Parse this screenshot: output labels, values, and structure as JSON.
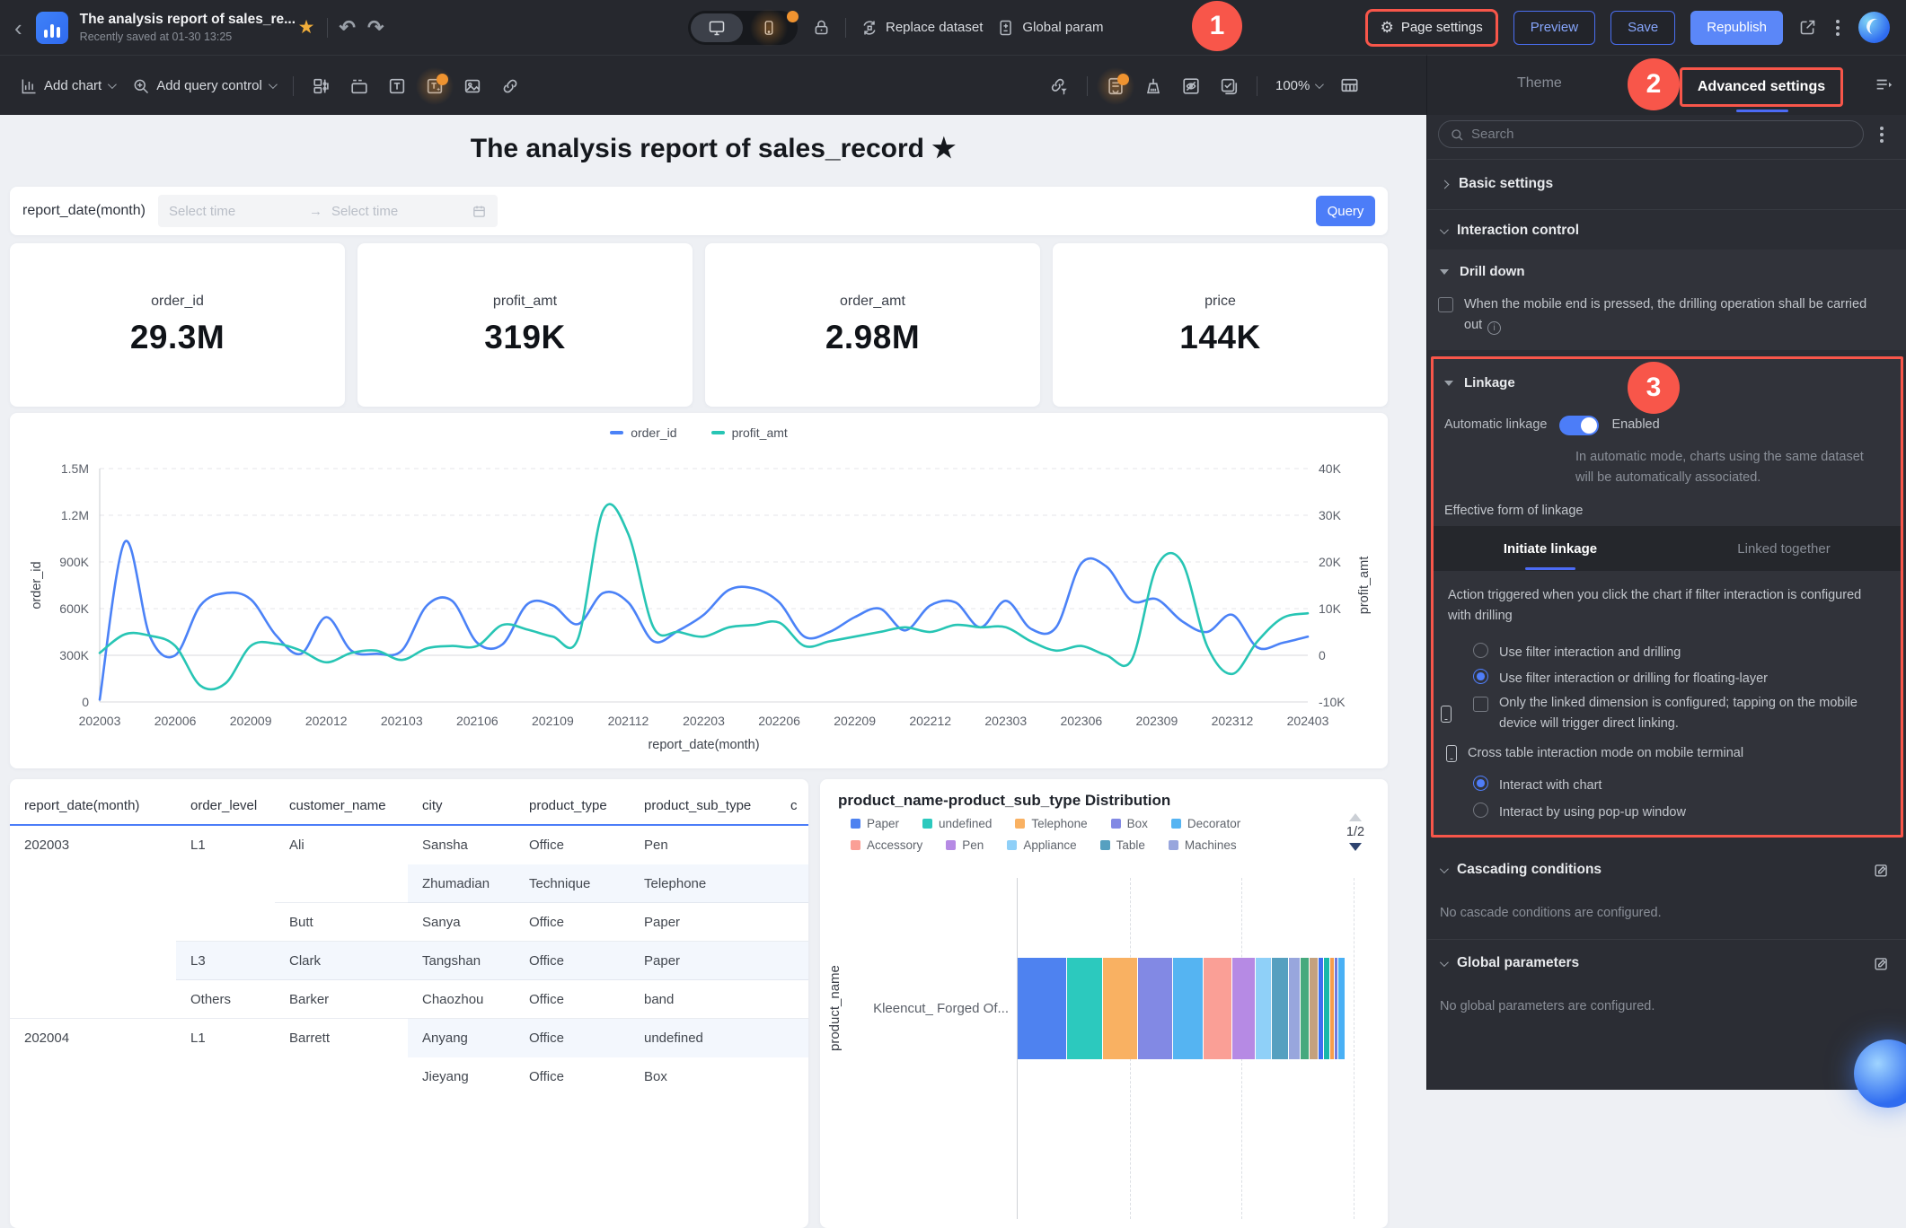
{
  "header": {
    "title": "The analysis report of sales_re...",
    "subtitle": "Recently saved at 01-30 13:25",
    "replace_dataset": "Replace dataset",
    "global_params": "Global param",
    "page_settings": "Page settings",
    "preview": "Preview",
    "save": "Save",
    "republish": "Republish",
    "icons": [
      "back",
      "app-logo",
      "favorite-star",
      "undo",
      "redo",
      "desktop",
      "mobile",
      "lock",
      "replace-dataset",
      "global-parameters",
      "gear",
      "share",
      "more",
      "avatar"
    ]
  },
  "toolbar": {
    "add_chart": "Add chart",
    "add_query_control": "Add query control",
    "zoom_level": "100%",
    "left_icons": [
      "widget-layout",
      "tab-container",
      "text",
      "text-template",
      "image",
      "hyperlink"
    ],
    "right_icons": [
      "link-filter",
      "report-doc",
      "clean-format",
      "hide-element",
      "batch-select",
      "canvas-size"
    ]
  },
  "annotations": {
    "badge1": "1",
    "badge2": "2",
    "badge3": "3"
  },
  "canvas": {
    "title": "The analysis report of sales_record",
    "title_star": "★",
    "query": {
      "label": "report_date(month)",
      "placeholder1": "Select time",
      "placeholder2": "Select time",
      "arrow": "→",
      "button": "Query"
    },
    "kpis": [
      {
        "label": "order_id",
        "value": "29.3M"
      },
      {
        "label": "profit_amt",
        "value": "319K"
      },
      {
        "label": "order_amt",
        "value": "2.98M"
      },
      {
        "label": "price",
        "value": "144K"
      }
    ]
  },
  "chart_data": [
    {
      "type": "line",
      "x_axis_label": "report_date(month)",
      "x_ticks": [
        "202003",
        "202006",
        "202009",
        "202012",
        "202103",
        "202106",
        "202109",
        "202112",
        "202203",
        "202206",
        "202209",
        "202212",
        "202303",
        "202306",
        "202309",
        "202312",
        "202403"
      ],
      "y_left": {
        "label": "order_id",
        "ticks": [
          "0",
          "300K",
          "600K",
          "900K",
          "1.2M",
          "1.5M"
        ],
        "min_k": 0,
        "max_k": 1500
      },
      "y_right": {
        "label": "profit_amt",
        "ticks": [
          "-10K",
          "0",
          "10K",
          "20K",
          "30K",
          "40K"
        ],
        "min_k": -10,
        "max_k": 40
      },
      "grid": true,
      "legend_position": "top",
      "series": [
        {
          "name": "order_id",
          "color": "#4b82f7",
          "axis": "left",
          "unit": "K",
          "points": [
            [
              202003,
              15
            ],
            [
              202004,
              1030
            ],
            [
              202005,
              420
            ],
            [
              202006,
              300
            ],
            [
              202007,
              620
            ],
            [
              202008,
              700
            ],
            [
              202009,
              660
            ],
            [
              202010,
              430
            ],
            [
              202011,
              310
            ],
            [
              202012,
              545
            ],
            [
              202101,
              330
            ],
            [
              202102,
              310
            ],
            [
              202103,
              330
            ],
            [
              202104,
              620
            ],
            [
              202105,
              650
            ],
            [
              202106,
              380
            ],
            [
              202107,
              370
            ],
            [
              202108,
              630
            ],
            [
              202109,
              620
            ],
            [
              202110,
              500
            ],
            [
              202111,
              700
            ],
            [
              202112,
              640
            ],
            [
              202201,
              390
            ],
            [
              202202,
              460
            ],
            [
              202203,
              560
            ],
            [
              202204,
              720
            ],
            [
              202205,
              730
            ],
            [
              202206,
              640
            ],
            [
              202207,
              420
            ],
            [
              202208,
              450
            ],
            [
              202209,
              545
            ],
            [
              202210,
              600
            ],
            [
              202211,
              460
            ],
            [
              202212,
              620
            ],
            [
              202301,
              640
            ],
            [
              202302,
              480
            ],
            [
              202303,
              650
            ],
            [
              202304,
              470
            ],
            [
              202305,
              480
            ],
            [
              202306,
              890
            ],
            [
              202307,
              870
            ],
            [
              202308,
              650
            ],
            [
              202309,
              660
            ],
            [
              202310,
              520
            ],
            [
              202311,
              450
            ],
            [
              202312,
              560
            ],
            [
              202401,
              350
            ],
            [
              202402,
              380
            ],
            [
              202403,
              420
            ]
          ]
        },
        {
          "name": "profit_amt",
          "color": "#27c5b4",
          "axis": "right",
          "unit": "K",
          "points": [
            [
              202003,
              0.5
            ],
            [
              202004,
              4.5
            ],
            [
              202005,
              4.2
            ],
            [
              202006,
              2
            ],
            [
              202007,
              -6.5
            ],
            [
              202008,
              -6
            ],
            [
              202009,
              2
            ],
            [
              202010,
              2.5
            ],
            [
              202011,
              1
            ],
            [
              202012,
              -1.5
            ],
            [
              202101,
              0.5
            ],
            [
              202102,
              1
            ],
            [
              202103,
              -1
            ],
            [
              202104,
              1.5
            ],
            [
              202105,
              2
            ],
            [
              202106,
              2
            ],
            [
              202107,
              6.5
            ],
            [
              202108,
              5.5
            ],
            [
              202109,
              4
            ],
            [
              202110,
              3.5
            ],
            [
              202111,
              31
            ],
            [
              202112,
              26
            ],
            [
              202201,
              6
            ],
            [
              202202,
              5
            ],
            [
              202203,
              4
            ],
            [
              202204,
              6
            ],
            [
              202205,
              6.5
            ],
            [
              202206,
              7
            ],
            [
              202207,
              2
            ],
            [
              202208,
              3
            ],
            [
              202209,
              4
            ],
            [
              202210,
              5
            ],
            [
              202211,
              6
            ],
            [
              202212,
              5
            ],
            [
              202301,
              6.5
            ],
            [
              202302,
              6
            ],
            [
              202303,
              6
            ],
            [
              202304,
              3
            ],
            [
              202305,
              1
            ],
            [
              202306,
              2
            ],
            [
              202307,
              0
            ],
            [
              202308,
              -1
            ],
            [
              202309,
              19
            ],
            [
              202310,
              20
            ],
            [
              202311,
              2
            ],
            [
              202312,
              -4
            ],
            [
              202401,
              3
            ],
            [
              202402,
              8
            ],
            [
              202403,
              9
            ]
          ]
        }
      ]
    },
    {
      "type": "bar-stacked-horizontal",
      "title": "product_name-product_sub_type Distribution",
      "ylabel": "product_name",
      "category": "Kleencut_ Forged Of...",
      "pagination": "1/2",
      "legend": [
        {
          "label": "Paper",
          "color": "#4e82f0"
        },
        {
          "label": "undefined",
          "color": "#2cc9be"
        },
        {
          "label": "Telephone",
          "color": "#f9b162"
        },
        {
          "label": "Box",
          "color": "#8289e4"
        },
        {
          "label": "Decorator",
          "color": "#55b4f2"
        },
        {
          "label": "Accessory",
          "color": "#fa9f96"
        },
        {
          "label": "Pen",
          "color": "#b68ae4"
        },
        {
          "label": "Appliance",
          "color": "#8fd0f8"
        },
        {
          "label": "Table",
          "color": "#56a0c0"
        },
        {
          "label": "Machines",
          "color": "#98a6dd"
        }
      ],
      "segments": [
        {
          "label": "Paper",
          "color": "#4e82f0",
          "pct": 15.0
        },
        {
          "label": "undefined",
          "color": "#2cc9be",
          "pct": 10.9
        },
        {
          "label": "Telephone",
          "color": "#f9b162",
          "pct": 10.7
        },
        {
          "label": "Box",
          "color": "#8289e4",
          "pct": 10.7
        },
        {
          "label": "Decorator",
          "color": "#55b4f2",
          "pct": 9.3
        },
        {
          "label": "Accessory",
          "color": "#fa9f96",
          "pct": 8.7
        },
        {
          "label": "Pen",
          "color": "#b68ae4",
          "pct": 7.1
        },
        {
          "label": "Appliance",
          "color": "#8fd0f8",
          "pct": 4.9
        },
        {
          "label": "Table",
          "color": "#56a0c0",
          "pct": 5.2
        },
        {
          "label": "Machines",
          "color": "#98a6dd",
          "pct": 3.6
        },
        {
          "label": "",
          "color": "#46a97e",
          "pct": 2.7
        },
        {
          "label": "",
          "color": "#c4a17e",
          "pct": 2.7
        },
        {
          "label": "",
          "color": "#3e6ef0",
          "pct": 1.6
        },
        {
          "label": "",
          "color": "#17b8ab",
          "pct": 1.9
        },
        {
          "label": "",
          "color": "#f79d4d",
          "pct": 1.4
        },
        {
          "label": "",
          "color": "#6f7ade",
          "pct": 1.1
        },
        {
          "label": "",
          "color": "#49b0f5",
          "pct": 2.2
        }
      ]
    }
  ],
  "table": {
    "columns": [
      "report_date(month)",
      "order_level",
      "customer_name",
      "city",
      "product_type",
      "product_sub_type",
      "c"
    ],
    "rows": [
      {
        "cells": [
          "202003",
          "L1",
          "Ali",
          "Sansha",
          "Office",
          "Pen",
          ""
        ],
        "shade_from": null,
        "line_from": null
      },
      {
        "cells": [
          "",
          "",
          "",
          "Zhumadian",
          "Technique",
          "Telephone",
          ""
        ],
        "shade_from": 3,
        "line_from": 2
      },
      {
        "cells": [
          "",
          "",
          "Butt",
          "Sanya",
          "Office",
          "Paper",
          ""
        ],
        "shade_from": null,
        "line_from": 1
      },
      {
        "cells": [
          "",
          "L3",
          "Clark",
          "Tangshan",
          "Office",
          "Paper",
          ""
        ],
        "shade_from": 1,
        "line_from": 1
      },
      {
        "cells": [
          "",
          "Others",
          "Barker",
          "Chaozhou",
          "Office",
          "band",
          ""
        ],
        "shade_from": null,
        "line_from": 0
      },
      {
        "cells": [
          "202004",
          "L1",
          "Barrett",
          "Anyang",
          "Office",
          "undefined",
          ""
        ],
        "shade_from": 3,
        "line_from": null
      },
      {
        "cells": [
          "",
          "",
          "",
          "Jieyang",
          "Office",
          "Box",
          ""
        ],
        "shade_from": null,
        "line_from": null
      }
    ]
  },
  "panel": {
    "tab_theme": "Theme",
    "tab_advanced": "Advanced settings",
    "search_placeholder": "Search",
    "basic": "Basic settings",
    "interaction": "Interaction control",
    "drill": {
      "title": "Drill down",
      "checkbox_label": "When the mobile end is pressed, the drilling operation shall be carried out"
    },
    "linkage": {
      "title": "Linkage",
      "auto_label": "Automatic linkage",
      "enabled": "Enabled",
      "desc": "In automatic mode, charts using the same dataset will be automatically associated.",
      "effective": "Effective form of linkage",
      "tab_initiate": "Initiate linkage",
      "tab_linked": "Linked together",
      "action_desc": "Action triggered when you click the chart if filter interaction is configured with drilling",
      "radio1": "Use filter interaction and drilling",
      "radio2": "Use filter interaction or drilling for floating-layer",
      "checkbox2": "Only the linked dimension is configured; tapping on the mobile device will trigger direct linking.",
      "cross_label": "Cross table interaction mode on mobile terminal",
      "radio3": "Interact with chart",
      "radio4": "Interact by using pop-up window"
    },
    "cascading": {
      "title": "Cascading conditions",
      "empty": "No cascade conditions are configured."
    },
    "global": {
      "title": "Global parameters",
      "empty": "No global parameters are configured."
    }
  }
}
